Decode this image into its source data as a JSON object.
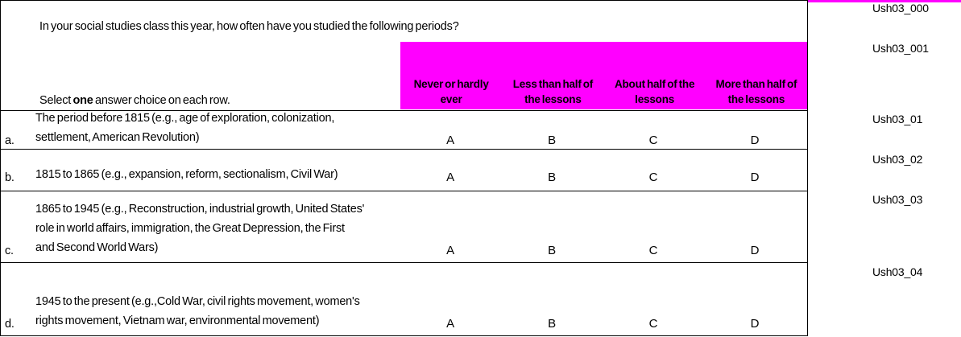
{
  "question": "In your social studies class this year, how often have you studied the following periods?",
  "instruction": {
    "prefix": "Select ",
    "bold_word": "one",
    "suffix": " answer choice on each row."
  },
  "answer_columns": [
    {
      "lines": [
        "Never or hardly",
        "ever"
      ]
    },
    {
      "lines": [
        "Less than half of",
        "the lessons"
      ]
    },
    {
      "lines": [
        "About half of the",
        "lessons"
      ]
    },
    {
      "lines": [
        "More than half of",
        "the lessons"
      ]
    }
  ],
  "rows": [
    {
      "letter": "a.",
      "lines": [
        "The period before 1815 (e.g., age of exploration, colonization,",
        "settlement, American Revolution)"
      ],
      "options": [
        "A",
        "B",
        "C",
        "D"
      ]
    },
    {
      "letter": "b.",
      "lines": [
        "1815 to 1865 (e.g., expansion, reform, sectionalism, Civil War)"
      ],
      "options": [
        "A",
        "B",
        "C",
        "D"
      ]
    },
    {
      "letter": "c.",
      "lines": [
        "1865 to 1945 (e.g., Reconstruction, industrial growth, United States'",
        "role in world affairs, immigration, the Great Depression, the First",
        "and Second World Wars)"
      ],
      "options": [
        "A",
        "B",
        "C",
        "D"
      ]
    },
    {
      "letter": "d.",
      "lines": [
        "1945 to the present (e.g.,Cold War, civil rights movement, women's",
        "rights movement, Vietnam war, environmental movement)"
      ],
      "options": [
        "A",
        "B",
        "C",
        "D"
      ]
    }
  ],
  "codes": [
    "Ush03_000",
    "Ush03_001",
    "Ush03_01",
    "Ush03_02",
    "Ush03_03",
    "Ush03_04"
  ],
  "colors": {
    "header_bg": "#ff00ff",
    "border": "#000000",
    "text": "#000000"
  }
}
